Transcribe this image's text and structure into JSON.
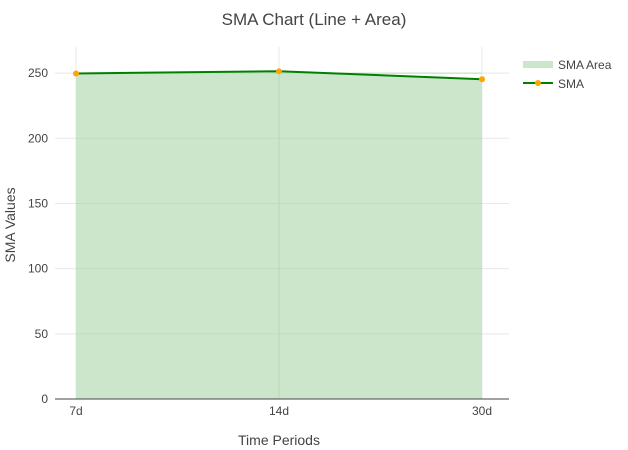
{
  "chart_data": {
    "type": "line",
    "title": "SMA Chart (Line + Area)",
    "xlabel": "Time Periods",
    "ylabel": "SMA Values",
    "categories": [
      "7d",
      "14d",
      "30d"
    ],
    "ylim": [
      0,
      270
    ],
    "yticks": [
      0,
      50,
      100,
      150,
      200,
      250
    ],
    "grid": true,
    "legend_position": "top-right",
    "series": [
      {
        "name": "SMA Area",
        "kind": "area",
        "values": [
          249.7,
          251.4,
          245.3
        ],
        "color": "#cce6cc"
      },
      {
        "name": "SMA",
        "kind": "line",
        "values": [
          249.7,
          251.4,
          245.3
        ],
        "color": "#008000",
        "marker_color": "#ffa500"
      }
    ]
  }
}
